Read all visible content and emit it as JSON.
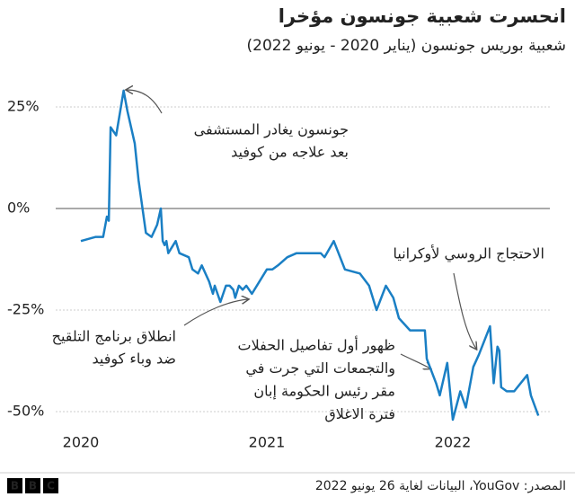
{
  "chart_data": {
    "type": "line",
    "title": "انحسرت شعبية جونسون مؤخرا",
    "subtitle": "شعبية بوريس جونسون (يناير 2020 - يونيو 2022)",
    "x": [
      2020.0,
      2020.08,
      2020.12,
      2020.14,
      2020.15,
      2020.16,
      2020.19,
      2020.23,
      2020.25,
      2020.29,
      2020.31,
      2020.35,
      2020.38,
      2020.41,
      2020.43,
      2020.44,
      2020.45,
      2020.46,
      2020.47,
      2020.51,
      2020.53,
      2020.58,
      2020.6,
      2020.63,
      2020.65,
      2020.69,
      2020.71,
      2020.72,
      2020.75,
      2020.78,
      2020.8,
      2020.82,
      2020.83,
      2020.85,
      2020.87,
      2020.89,
      2020.92,
      2021.0,
      2021.03,
      2021.06,
      2021.11,
      2021.16,
      2021.22,
      2021.29,
      2021.31,
      2021.36,
      2021.42,
      2021.5,
      2021.55,
      2021.59,
      2021.64,
      2021.68,
      2021.71,
      2021.77,
      2021.81,
      2021.85,
      2021.86,
      2021.91,
      2021.93,
      2021.97,
      2022.0,
      2022.04,
      2022.07,
      2022.11,
      2022.14,
      2022.2,
      2022.22,
      2022.24,
      2022.25,
      2022.26,
      2022.29,
      2022.33,
      2022.4,
      2022.42,
      2022.46
    ],
    "values": [
      -8,
      -7,
      -7,
      -2,
      -3,
      20,
      18,
      29,
      24,
      16,
      7,
      -6,
      -7,
      -4,
      0,
      -8,
      -9,
      -8,
      -11,
      -8,
      -11,
      -12,
      -15,
      -16,
      -14,
      -18,
      -21,
      -19,
      -23,
      -19,
      -19,
      -20,
      -22,
      -19,
      -20,
      -19,
      -21,
      -15,
      -15,
      -14,
      -12,
      -11,
      -11,
      -11,
      -12,
      -8,
      -15,
      -16,
      -19,
      -25,
      -19,
      -22,
      -27,
      -30,
      -30,
      -30,
      -37,
      -43,
      -46,
      -38,
      -52,
      -45,
      -49,
      -39,
      -36,
      -29,
      -43,
      -34,
      -35,
      -44,
      -45,
      -45,
      -41,
      -46,
      -51
    ],
    "color": "#1a7fc4",
    "xlim": [
      2019.95,
      2022.6
    ],
    "xticks": [
      2020,
      2021,
      2022
    ],
    "ylim": [
      -55,
      33
    ],
    "yticks": [
      {
        "value": 25,
        "label": "25%"
      },
      {
        "value": 0,
        "label": "0%"
      },
      {
        "value": -25,
        "label": "-25%"
      },
      {
        "value": -50,
        "label": "-50%"
      }
    ],
    "grid": true,
    "annotations": [
      {
        "lines": [
          "جونسون يغادر المستشفى",
          "بعد علاجه من كوفيد"
        ]
      },
      {
        "lines": [
          "الاحتجاج الروسي لأوكرانيا"
        ]
      },
      {
        "lines": [
          "انطلاق برنامج التلقيح",
          "ضد وباء كوفيد"
        ]
      },
      {
        "lines": [
          "ظهور أول تفاصيل الحفلات",
          "والتجمعات التي جرت في",
          "مقر رئيس الحكومة إبان",
          "فترة الاغلاق"
        ]
      }
    ],
    "source": "المصدر: YouGov، البيانات لغاية 26 يونيو 2022",
    "logo": [
      "B",
      "B",
      "C"
    ]
  }
}
